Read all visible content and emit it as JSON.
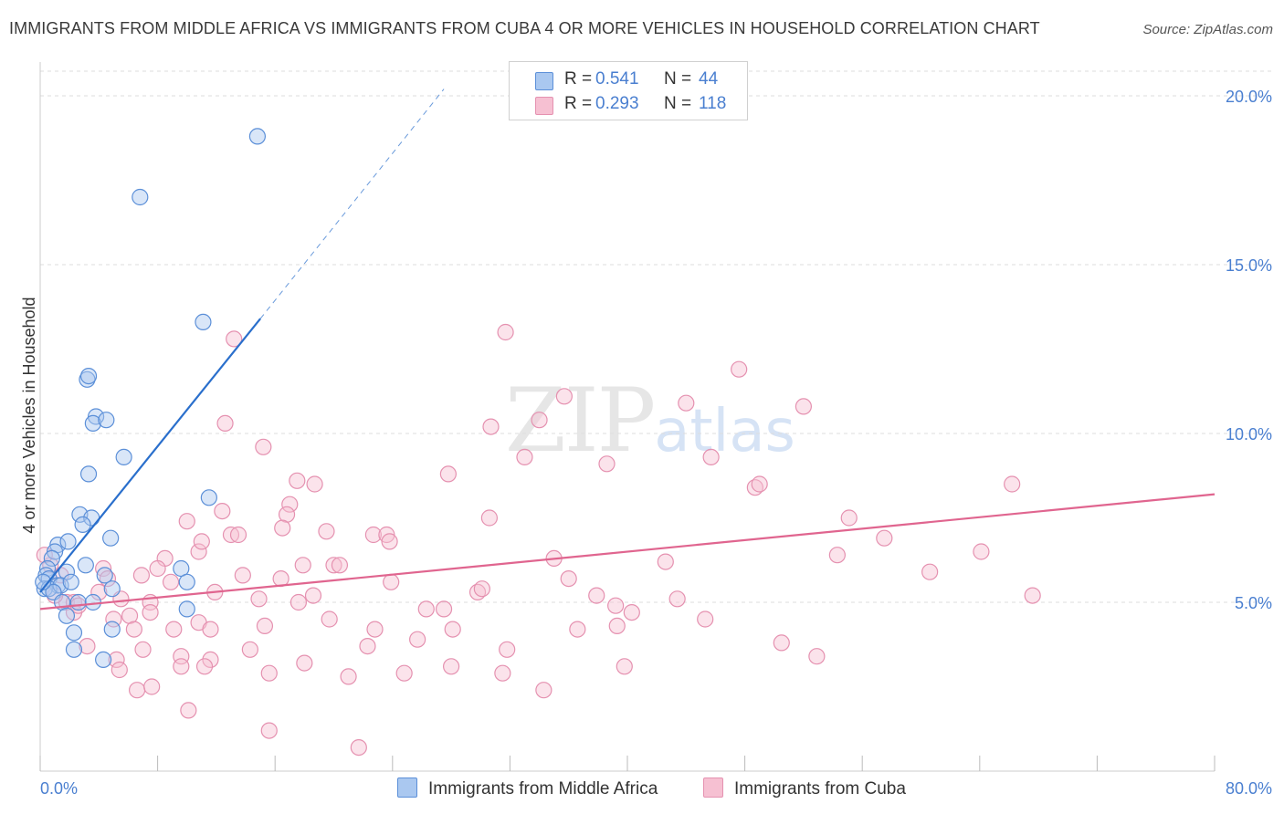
{
  "title": "IMMIGRANTS FROM MIDDLE AFRICA VS IMMIGRANTS FROM CUBA 4 OR MORE VEHICLES IN HOUSEHOLD CORRELATION CHART",
  "source": "Source: ZipAtlas.com",
  "watermark": {
    "zip": "ZIP",
    "atlas": "atlas"
  },
  "legend": {
    "rows": [
      {
        "r_label": "R =",
        "r_value": "0.541",
        "n_label": "N =",
        "n_value": "44"
      },
      {
        "r_label": "R =",
        "r_value": "0.293",
        "n_label": "N =",
        "n_value": "118"
      }
    ]
  },
  "bottom_legend": {
    "series1": "Immigrants from Middle Africa",
    "series2": "Immigrants from Cuba"
  },
  "colors": {
    "series1_fill": "#aac8f0",
    "series1_stroke": "#5b8fd8",
    "series1_line": "#2a6fcc",
    "series2_fill": "#f6c0d2",
    "series2_stroke": "#e591b0",
    "series2_line": "#e0658f",
    "tick_text": "#4a7fd0",
    "grid": "#dddddd"
  },
  "chart_data": {
    "type": "scatter",
    "title": "IMMIGRANTS FROM MIDDLE AFRICA VS IMMIGRANTS FROM CUBA 4 OR MORE VEHICLES IN HOUSEHOLD CORRELATION CHART",
    "xlabel": "",
    "ylabel": "4 or more Vehicles in Household",
    "xlim": [
      0,
      80
    ],
    "ylim": [
      0,
      21
    ],
    "x_tick_labels": [
      "0.0%",
      "80.0%"
    ],
    "y_ticks": [
      5,
      10,
      15,
      20
    ],
    "y_tick_labels": [
      "5.0%",
      "10.0%",
      "15.0%",
      "20.0%"
    ],
    "grid": "horizontal dashed",
    "legend_position": "top-center",
    "series": [
      {
        "name": "Immigrants from Middle Africa",
        "R": 0.541,
        "N": 44,
        "trend": {
          "x": [
            0,
            15
          ],
          "y": [
            5.3,
            13.4
          ]
        },
        "trend_dashed_extension": {
          "x": [
            15,
            27.5
          ],
          "y": [
            13.4,
            20.2
          ]
        },
        "points": [
          [
            14.8,
            18.8
          ],
          [
            6.8,
            17.0
          ],
          [
            11.1,
            13.3
          ],
          [
            3.2,
            11.6
          ],
          [
            3.3,
            11.7
          ],
          [
            3.8,
            10.5
          ],
          [
            3.6,
            10.3
          ],
          [
            4.5,
            10.4
          ],
          [
            5.7,
            9.3
          ],
          [
            3.3,
            8.8
          ],
          [
            11.5,
            8.1
          ],
          [
            2.7,
            7.6
          ],
          [
            3.5,
            7.5
          ],
          [
            2.9,
            7.3
          ],
          [
            4.8,
            6.9
          ],
          [
            1.2,
            6.7
          ],
          [
            1.9,
            6.8
          ],
          [
            1.0,
            6.5
          ],
          [
            0.8,
            6.3
          ],
          [
            0.5,
            6.0
          ],
          [
            3.1,
            6.1
          ],
          [
            1.8,
            5.9
          ],
          [
            0.4,
            5.8
          ],
          [
            0.6,
            5.7
          ],
          [
            1.2,
            5.5
          ],
          [
            0.3,
            5.4
          ],
          [
            0.6,
            5.4
          ],
          [
            1.4,
            5.5
          ],
          [
            2.1,
            5.6
          ],
          [
            0.9,
            5.3
          ],
          [
            4.4,
            5.8
          ],
          [
            9.6,
            6.0
          ],
          [
            10.0,
            5.6
          ],
          [
            1.5,
            5.0
          ],
          [
            2.6,
            5.0
          ],
          [
            3.6,
            5.0
          ],
          [
            4.9,
            5.4
          ],
          [
            10.0,
            4.8
          ],
          [
            1.8,
            4.6
          ],
          [
            2.3,
            4.1
          ],
          [
            4.9,
            4.2
          ],
          [
            2.3,
            3.6
          ],
          [
            4.3,
            3.3
          ],
          [
            0.2,
            5.6
          ]
        ]
      },
      {
        "name": "Immigrants from Cuba",
        "R": 0.293,
        "N": 118,
        "trend": {
          "x": [
            0,
            80
          ],
          "y": [
            4.8,
            8.2
          ]
        },
        "points": [
          [
            31.7,
            13.0
          ],
          [
            13.2,
            12.8
          ],
          [
            47.6,
            11.9
          ],
          [
            35.7,
            11.1
          ],
          [
            44.0,
            10.9
          ],
          [
            52.0,
            10.8
          ],
          [
            12.6,
            10.3
          ],
          [
            30.7,
            10.2
          ],
          [
            34.0,
            10.4
          ],
          [
            15.2,
            9.6
          ],
          [
            33.0,
            9.3
          ],
          [
            38.6,
            9.1
          ],
          [
            45.7,
            9.3
          ],
          [
            27.8,
            8.8
          ],
          [
            17.5,
            8.6
          ],
          [
            18.7,
            8.5
          ],
          [
            48.7,
            8.4
          ],
          [
            49.0,
            8.5
          ],
          [
            66.2,
            8.5
          ],
          [
            17.0,
            7.9
          ],
          [
            12.4,
            7.7
          ],
          [
            16.8,
            7.6
          ],
          [
            30.6,
            7.5
          ],
          [
            55.1,
            7.5
          ],
          [
            10.0,
            7.4
          ],
          [
            16.5,
            7.2
          ],
          [
            13.0,
            7.0
          ],
          [
            13.5,
            7.0
          ],
          [
            19.5,
            7.1
          ],
          [
            22.7,
            7.0
          ],
          [
            23.6,
            7.0
          ],
          [
            23.8,
            6.8
          ],
          [
            57.5,
            6.9
          ],
          [
            10.8,
            6.5
          ],
          [
            8.5,
            6.3
          ],
          [
            35.0,
            6.3
          ],
          [
            42.6,
            6.2
          ],
          [
            54.3,
            6.4
          ],
          [
            64.1,
            6.5
          ],
          [
            6.9,
            5.8
          ],
          [
            4.3,
            6.0
          ],
          [
            8.0,
            6.0
          ],
          [
            17.9,
            6.1
          ],
          [
            20.0,
            6.1
          ],
          [
            20.4,
            6.1
          ],
          [
            60.6,
            5.9
          ],
          [
            1.4,
            5.8
          ],
          [
            4.6,
            5.7
          ],
          [
            8.9,
            5.6
          ],
          [
            13.8,
            5.8
          ],
          [
            16.4,
            5.7
          ],
          [
            23.9,
            5.6
          ],
          [
            36.0,
            5.7
          ],
          [
            11.9,
            5.3
          ],
          [
            14.9,
            5.1
          ],
          [
            18.6,
            5.2
          ],
          [
            29.8,
            5.3
          ],
          [
            30.1,
            5.4
          ],
          [
            37.9,
            5.2
          ],
          [
            43.4,
            5.1
          ],
          [
            67.6,
            5.2
          ],
          [
            1.8,
            5.0
          ],
          [
            2.3,
            5.0
          ],
          [
            5.5,
            5.1
          ],
          [
            7.5,
            5.0
          ],
          [
            17.6,
            5.0
          ],
          [
            26.3,
            4.8
          ],
          [
            27.5,
            4.8
          ],
          [
            39.2,
            4.9
          ],
          [
            40.3,
            4.7
          ],
          [
            2.3,
            4.7
          ],
          [
            5.0,
            4.5
          ],
          [
            6.1,
            4.6
          ],
          [
            7.5,
            4.7
          ],
          [
            19.7,
            4.5
          ],
          [
            10.8,
            4.4
          ],
          [
            11.6,
            4.2
          ],
          [
            15.3,
            4.3
          ],
          [
            22.8,
            4.2
          ],
          [
            28.1,
            4.2
          ],
          [
            36.6,
            4.2
          ],
          [
            39.3,
            4.3
          ],
          [
            45.3,
            4.5
          ],
          [
            6.4,
            4.2
          ],
          [
            9.1,
            4.2
          ],
          [
            3.2,
            3.7
          ],
          [
            7.0,
            3.6
          ],
          [
            9.6,
            3.4
          ],
          [
            11.6,
            3.3
          ],
          [
            14.3,
            3.6
          ],
          [
            22.3,
            3.7
          ],
          [
            25.7,
            3.9
          ],
          [
            31.8,
            3.6
          ],
          [
            50.5,
            3.8
          ],
          [
            52.9,
            3.4
          ],
          [
            5.2,
            3.3
          ],
          [
            9.6,
            3.1
          ],
          [
            11.2,
            3.1
          ],
          [
            18.0,
            3.2
          ],
          [
            28.0,
            3.1
          ],
          [
            39.8,
            3.1
          ],
          [
            5.4,
            3.0
          ],
          [
            15.6,
            2.9
          ],
          [
            21.0,
            2.8
          ],
          [
            24.8,
            2.9
          ],
          [
            31.5,
            2.9
          ],
          [
            6.6,
            2.4
          ],
          [
            7.6,
            2.5
          ],
          [
            34.3,
            2.4
          ],
          [
            10.1,
            1.8
          ],
          [
            15.6,
            1.2
          ],
          [
            21.7,
            0.7
          ],
          [
            0.7,
            6.1
          ],
          [
            1.0,
            5.2
          ],
          [
            0.3,
            6.4
          ],
          [
            2.6,
            4.9
          ],
          [
            4.0,
            5.3
          ],
          [
            11.0,
            6.8
          ]
        ]
      }
    ]
  }
}
